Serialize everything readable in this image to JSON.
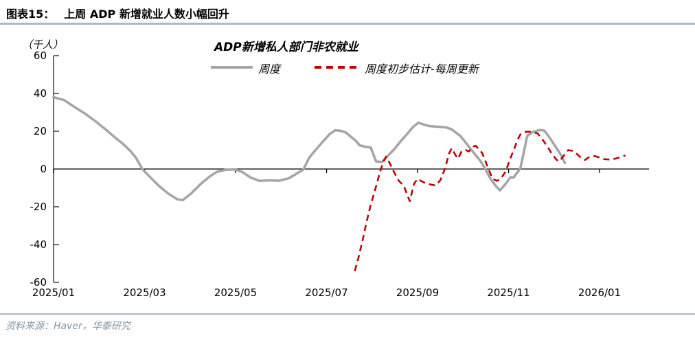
{
  "header": {
    "figure_label": "图表15：",
    "title": "上周 ADP 新增就业人数小幅回升"
  },
  "source": {
    "text": "资料来源：Haver，华泰研究"
  },
  "colors": {
    "series_weekly": "#a6a6a6",
    "series_estimate": "#c00000",
    "axis": "#404040",
    "zero_line": "#000000",
    "divider": "#a9bacb",
    "source_text": "#8495a6"
  },
  "chart_data": {
    "type": "line",
    "title": "ADP新增私人部门非农就业",
    "unit_label": "（千人）",
    "xlabel": "",
    "ylabel": "千人",
    "ylim": [
      -60,
      60
    ],
    "yticks": [
      60,
      40,
      20,
      0,
      -20,
      -40,
      -60
    ],
    "grid": false,
    "legend_position": "top",
    "x_axis": {
      "note": "x measured in months after 2025/01",
      "tick_positions": [
        0,
        2,
        4,
        6,
        8,
        10,
        12
      ],
      "tick_labels": [
        "2025/01",
        "2025/03",
        "2025/05",
        "2025/07",
        "2025/09",
        "2025/11",
        "2026/01"
      ]
    },
    "series": [
      {
        "name": "周度",
        "color": "#a6a6a6",
        "style": "solid",
        "points": [
          [
            0,
            38
          ],
          [
            0.23,
            36.5
          ],
          [
            0.45,
            33
          ],
          [
            0.68,
            29.5
          ],
          [
            0.91,
            25.5
          ],
          [
            1.09,
            22
          ],
          [
            1.19,
            20
          ],
          [
            1.36,
            16.5
          ],
          [
            1.54,
            13
          ],
          [
            1.69,
            9.5
          ],
          [
            1.81,
            6
          ],
          [
            1.95,
            0
          ],
          [
            2.11,
            -4
          ],
          [
            2.32,
            -9
          ],
          [
            2.52,
            -13
          ],
          [
            2.72,
            -16
          ],
          [
            2.84,
            -16.5
          ],
          [
            3.02,
            -13
          ],
          [
            3.23,
            -8
          ],
          [
            3.43,
            -4
          ],
          [
            3.59,
            -1.5
          ],
          [
            3.77,
            -0.5
          ],
          [
            3.98,
            -0.2
          ],
          [
            4.14,
            -1.5
          ],
          [
            4.33,
            -4.5
          ],
          [
            4.53,
            -6.3
          ],
          [
            4.74,
            -6
          ],
          [
            4.95,
            -6.2
          ],
          [
            5.16,
            -5
          ],
          [
            5.34,
            -2.5
          ],
          [
            5.49,
            -0.3
          ],
          [
            5.62,
            6
          ],
          [
            5.74,
            9.5
          ],
          [
            5.92,
            14.5
          ],
          [
            6.07,
            18.5
          ],
          [
            6.19,
            20.5
          ],
          [
            6.31,
            20.2
          ],
          [
            6.42,
            19.4
          ],
          [
            6.54,
            17
          ],
          [
            6.64,
            15
          ],
          [
            6.73,
            12.5
          ],
          [
            6.85,
            11.8
          ],
          [
            6.97,
            11.4
          ],
          [
            7.09,
            4
          ],
          [
            7.22,
            3.7
          ],
          [
            7.35,
            7
          ],
          [
            7.49,
            10.5
          ],
          [
            7.64,
            15
          ],
          [
            7.77,
            18.5
          ],
          [
            7.89,
            22
          ],
          [
            8.02,
            24.5
          ],
          [
            8.14,
            23.5
          ],
          [
            8.24,
            22.8
          ],
          [
            8.36,
            22.5
          ],
          [
            8.5,
            22.3
          ],
          [
            8.63,
            22
          ],
          [
            8.75,
            21
          ],
          [
            8.94,
            17.5
          ],
          [
            9.09,
            13
          ],
          [
            9.24,
            8.5
          ],
          [
            9.39,
            4
          ],
          [
            9.49,
            0
          ],
          [
            9.6,
            -5
          ],
          [
            9.72,
            -9
          ],
          [
            9.81,
            -11.3
          ],
          [
            9.95,
            -7.5
          ],
          [
            10.04,
            -4.4
          ],
          [
            10.11,
            -4.5
          ],
          [
            10.26,
            0.3
          ],
          [
            10.41,
            17.5
          ],
          [
            10.53,
            19.5
          ],
          [
            10.69,
            20.7
          ],
          [
            10.79,
            20.3
          ],
          [
            10.9,
            16.7
          ],
          [
            11,
            13
          ],
          [
            11.15,
            7.5
          ],
          [
            11.24,
            3.2
          ]
        ]
      },
      {
        "name": "周度初步估计-每周更新",
        "color": "#c00000",
        "style": "dashed",
        "points": [
          [
            6.62,
            -54
          ],
          [
            6.7,
            -47
          ],
          [
            6.79,
            -38
          ],
          [
            6.88,
            -28
          ],
          [
            6.97,
            -19
          ],
          [
            7.08,
            -10
          ],
          [
            7.17,
            -2
          ],
          [
            7.25,
            4
          ],
          [
            7.31,
            6.5
          ],
          [
            7.38,
            3.5
          ],
          [
            7.47,
            -1
          ],
          [
            7.58,
            -6
          ],
          [
            7.7,
            -9
          ],
          [
            7.77,
            -13.5
          ],
          [
            7.83,
            -17
          ],
          [
            7.92,
            -8
          ],
          [
            8,
            -5.2
          ],
          [
            8.09,
            -6.5
          ],
          [
            8.18,
            -7.5
          ],
          [
            8.3,
            -8.3
          ],
          [
            8.39,
            -8.7
          ],
          [
            8.5,
            -6
          ],
          [
            8.6,
            0
          ],
          [
            8.69,
            8
          ],
          [
            8.75,
            11
          ],
          [
            8.83,
            7.5
          ],
          [
            8.89,
            5.5
          ],
          [
            8.97,
            9.5
          ],
          [
            9.06,
            10
          ],
          [
            9.13,
            9.3
          ],
          [
            9.21,
            11.8
          ],
          [
            9.28,
            12.3
          ],
          [
            9.42,
            8.5
          ],
          [
            9.55,
            0.5
          ],
          [
            9.65,
            -5.1
          ],
          [
            9.74,
            -6.3
          ],
          [
            9.83,
            -5.2
          ],
          [
            9.93,
            -1.5
          ],
          [
            10,
            2.9
          ],
          [
            10.06,
            6.9
          ],
          [
            10.13,
            11
          ],
          [
            10.19,
            15
          ],
          [
            10.26,
            18.3
          ],
          [
            10.35,
            19.6
          ],
          [
            10.45,
            19.8
          ],
          [
            10.55,
            19.4
          ],
          [
            10.64,
            18.8
          ],
          [
            10.75,
            15.5
          ],
          [
            10.85,
            12
          ],
          [
            10.94,
            8.5
          ],
          [
            11.05,
            5
          ],
          [
            11.12,
            4
          ],
          [
            11.21,
            7
          ],
          [
            11.31,
            10
          ],
          [
            11.41,
            9.6
          ],
          [
            11.5,
            8
          ],
          [
            11.59,
            6
          ],
          [
            11.68,
            4.8
          ],
          [
            11.77,
            6.3
          ],
          [
            11.88,
            6.9
          ],
          [
            11.98,
            6.2
          ],
          [
            12.1,
            5.2
          ],
          [
            12.24,
            5
          ],
          [
            12.35,
            5.5
          ],
          [
            12.45,
            6.3
          ],
          [
            12.57,
            7.2
          ]
        ]
      }
    ]
  }
}
